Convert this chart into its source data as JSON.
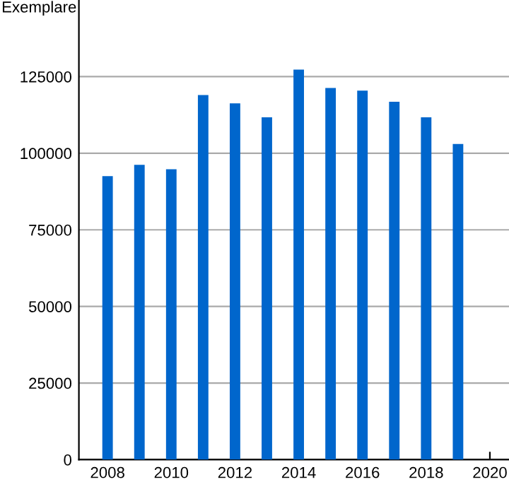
{
  "chart_data": {
    "type": "bar",
    "ylabel": "Exemplare",
    "x": [
      2008,
      2009,
      2010,
      2011,
      2012,
      2013,
      2014,
      2015,
      2016,
      2017,
      2018,
      2019
    ],
    "values": [
      92500,
      96200,
      94800,
      119000,
      116300,
      111700,
      127300,
      121300,
      120400,
      116800,
      111700,
      103000
    ],
    "color": "#0066cc",
    "xlim": [
      2007.1,
      2020.6
    ],
    "xticks": [
      2008,
      2010,
      2012,
      2014,
      2016,
      2018,
      2020
    ],
    "ylim": [
      0,
      150000
    ],
    "yticks": [
      0,
      25000,
      50000,
      75000,
      100000,
      125000
    ],
    "grid": "y",
    "legend": false
  }
}
